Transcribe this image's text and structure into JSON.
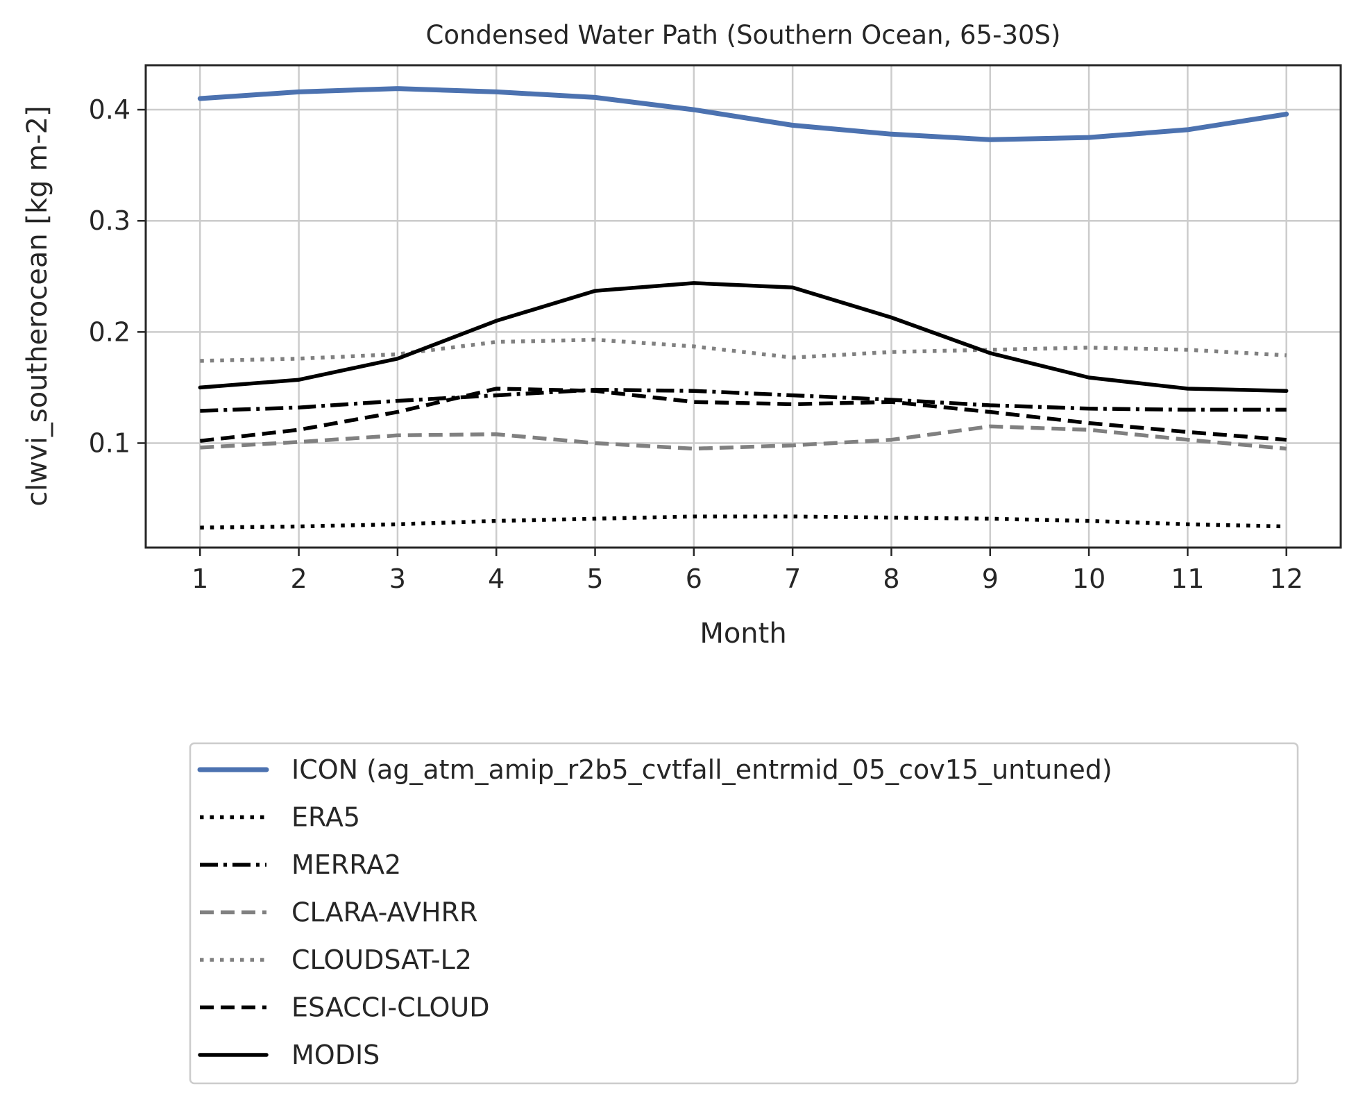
{
  "chart_data": {
    "type": "line",
    "title": "Condensed Water Path (Southern Ocean, 65-30S)",
    "xlabel": "Month",
    "ylabel": "clwvi_southerocean [kg m-2]",
    "x": [
      1,
      2,
      3,
      4,
      5,
      6,
      7,
      8,
      9,
      10,
      11,
      12
    ],
    "xticks": [
      "1",
      "2",
      "3",
      "4",
      "5",
      "6",
      "7",
      "8",
      "9",
      "10",
      "11",
      "12"
    ],
    "yticks": [
      "0.1",
      "0.2",
      "0.3",
      "0.4"
    ],
    "ytick_values": [
      0.1,
      0.2,
      0.3,
      0.4
    ],
    "xlim": [
      0.45,
      12.55
    ],
    "ylim": [
      0.006,
      0.44
    ],
    "grid": true,
    "legend_position": "below",
    "series": [
      {
        "name": "ICON (ag_atm_amip_r2b5_cvtfall_entrmid_05_cov15_untuned)",
        "color": "#4c72b0",
        "style": "solid-thick",
        "values": [
          0.41,
          0.416,
          0.419,
          0.416,
          0.411,
          0.4,
          0.386,
          0.378,
          0.373,
          0.375,
          0.382,
          0.396
        ]
      },
      {
        "name": "ERA5",
        "color": "#000000",
        "style": "dotted",
        "values": [
          0.024,
          0.025,
          0.027,
          0.03,
          0.032,
          0.034,
          0.034,
          0.033,
          0.032,
          0.03,
          0.027,
          0.025
        ]
      },
      {
        "name": "MERRA2",
        "color": "#000000",
        "style": "dashdot",
        "values": [
          0.129,
          0.132,
          0.138,
          0.143,
          0.148,
          0.147,
          0.143,
          0.139,
          0.134,
          0.131,
          0.13,
          0.13
        ]
      },
      {
        "name": "CLARA-AVHRR",
        "color": "#808080",
        "style": "dashed",
        "values": [
          0.096,
          0.101,
          0.107,
          0.108,
          0.1,
          0.095,
          0.098,
          0.103,
          0.115,
          0.112,
          0.103,
          0.095
        ]
      },
      {
        "name": "CLOUDSAT-L2",
        "color": "#808080",
        "style": "dotted",
        "values": [
          0.174,
          0.176,
          0.18,
          0.191,
          0.193,
          0.187,
          0.177,
          0.182,
          0.184,
          0.186,
          0.184,
          0.179
        ]
      },
      {
        "name": "ESACCI-CLOUD",
        "color": "#000000",
        "style": "dashed",
        "values": [
          0.102,
          0.112,
          0.128,
          0.149,
          0.147,
          0.137,
          0.135,
          0.137,
          0.128,
          0.118,
          0.11,
          0.103
        ]
      },
      {
        "name": "MODIS",
        "color": "#000000",
        "style": "solid",
        "values": [
          0.15,
          0.157,
          0.176,
          0.21,
          0.237,
          0.244,
          0.24,
          0.213,
          0.181,
          0.159,
          0.149,
          0.147
        ]
      }
    ]
  }
}
